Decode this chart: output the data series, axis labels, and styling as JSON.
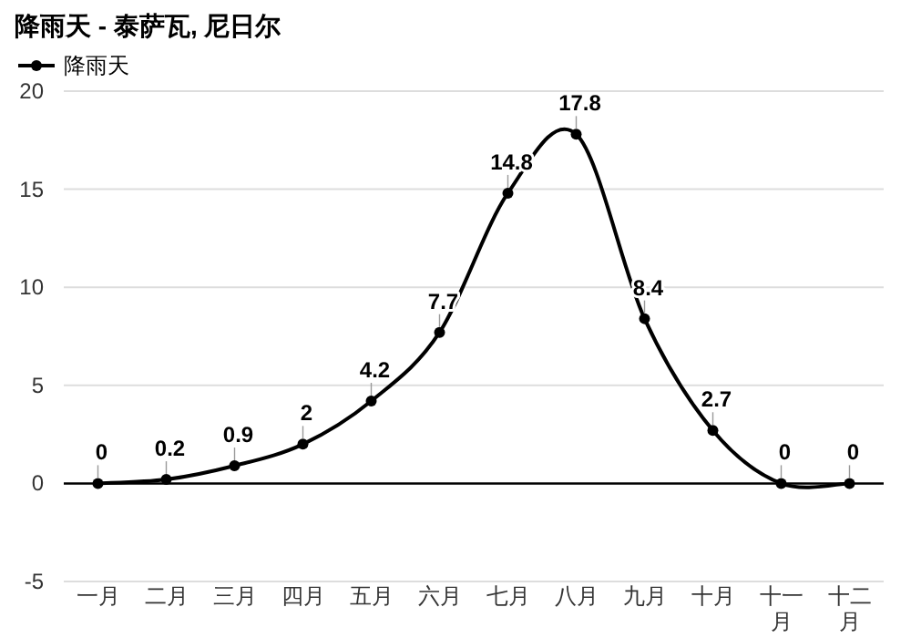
{
  "chart_data": {
    "type": "line",
    "title": "降雨天 - 泰萨瓦, 尼日尔",
    "categories": [
      "一月",
      "二月",
      "三月",
      "四月",
      "五月",
      "六月",
      "七月",
      "八月",
      "九月",
      "十月",
      "十一月",
      "十二月"
    ],
    "series": [
      {
        "name": "降雨天",
        "color": "#000000",
        "values": [
          0,
          0.2,
          0.9,
          2,
          4.2,
          7.7,
          14.8,
          17.8,
          8.4,
          2.7,
          0,
          0
        ]
      }
    ],
    "ylim": [
      -5,
      20
    ],
    "yticks": [
      -5,
      0,
      5,
      10,
      15,
      20
    ],
    "grid": "y",
    "legend": "top left",
    "marker": "circle",
    "line_style": "solid",
    "data_labels": true
  }
}
